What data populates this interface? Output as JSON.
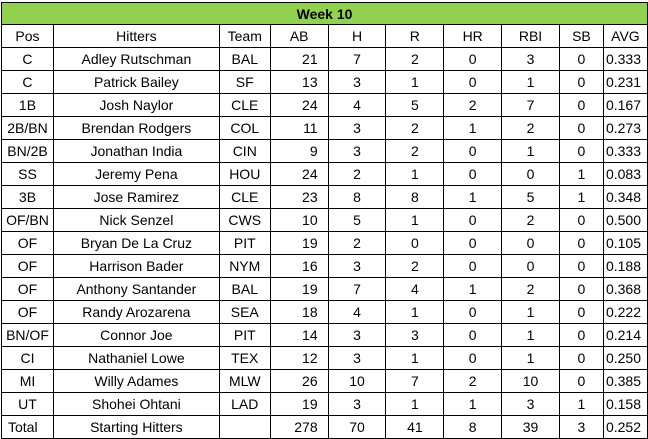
{
  "title": "Week 10",
  "headers": [
    "Pos",
    "Hitters",
    "Team",
    "AB",
    "H",
    "R",
    "HR",
    "RBI",
    "SB",
    "AVG"
  ],
  "rows": [
    [
      "C",
      "Adley Rutschman",
      "BAL",
      "21",
      "7",
      "2",
      "0",
      "3",
      "0",
      "0.333"
    ],
    [
      "C",
      "Patrick Bailey",
      "SF",
      "13",
      "3",
      "1",
      "0",
      "1",
      "0",
      "0.231"
    ],
    [
      "1B",
      "Josh Naylor",
      "CLE",
      "24",
      "4",
      "5",
      "2",
      "7",
      "0",
      "0.167"
    ],
    [
      "2B/BN",
      "Brendan Rodgers",
      "COL",
      "11",
      "3",
      "2",
      "1",
      "2",
      "0",
      "0.273"
    ],
    [
      "BN/2B",
      "Jonathan India",
      "CIN",
      "9",
      "3",
      "2",
      "0",
      "1",
      "0",
      "0.333"
    ],
    [
      "SS",
      "Jeremy Pena",
      "HOU",
      "24",
      "2",
      "1",
      "0",
      "0",
      "1",
      "0.083"
    ],
    [
      "3B",
      "Jose Ramirez",
      "CLE",
      "23",
      "8",
      "8",
      "1",
      "5",
      "1",
      "0.348"
    ],
    [
      "OF/BN",
      "Nick Senzel",
      "CWS",
      "10",
      "5",
      "1",
      "0",
      "2",
      "0",
      "0.500"
    ],
    [
      "OF",
      "Bryan De La Cruz",
      "PIT",
      "19",
      "2",
      "0",
      "0",
      "0",
      "0",
      "0.105"
    ],
    [
      "OF",
      "Harrison Bader",
      "NYM",
      "16",
      "3",
      "2",
      "0",
      "0",
      "0",
      "0.188"
    ],
    [
      "OF",
      "Anthony Santander",
      "BAL",
      "19",
      "7",
      "4",
      "1",
      "2",
      "0",
      "0.368"
    ],
    [
      "OF",
      "Randy Arozarena",
      "SEA",
      "18",
      "4",
      "1",
      "0",
      "1",
      "0",
      "0.222"
    ],
    [
      "BN/OF",
      "Connor Joe",
      "PIT",
      "14",
      "3",
      "3",
      "0",
      "1",
      "0",
      "0.214"
    ],
    [
      "CI",
      "Nathaniel Lowe",
      "TEX",
      "12",
      "3",
      "1",
      "0",
      "1",
      "0",
      "0.250"
    ],
    [
      "MI",
      "Willy Adames",
      "MLW",
      "26",
      "10",
      "7",
      "2",
      "10",
      "0",
      "0.385"
    ],
    [
      "UT",
      "Shohei Ohtani",
      "LAD",
      "19",
      "3",
      "1",
      "1",
      "3",
      "1",
      "0.158"
    ]
  ],
  "total": [
    "Total",
    "Starting Hitters",
    "",
    "278",
    "70",
    "41",
    "8",
    "39",
    "3",
    "0.252"
  ],
  "colors": {
    "title_fill": "#92d050",
    "grid": "#000000"
  }
}
